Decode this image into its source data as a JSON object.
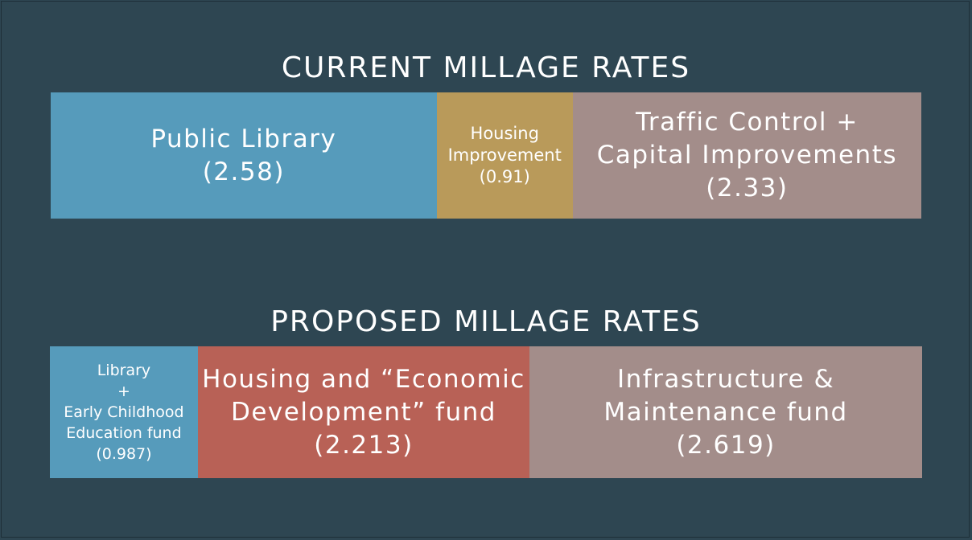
{
  "colors": {
    "background": "#2e4652",
    "library": "#569bbb",
    "housing_current": "#b99a5a",
    "traffic": "#a38d8a",
    "library_proposed": "#569bbb",
    "housing_proposed": "#b86156",
    "infrastructure": "#a38d8a",
    "text": "#ffffff"
  },
  "chart_data": [
    {
      "type": "bar",
      "orientation": "horizontal-stacked",
      "title": "CURRENT MILLAGE RATES",
      "categories": [
        "Public Library",
        "Housing Improvement",
        "Traffic Control + Capital Improvements"
      ],
      "values": [
        2.58,
        0.91,
        2.33
      ],
      "segments": [
        {
          "label_lines": [
            "Public Library"
          ],
          "value_label": "(2.58)",
          "value": 2.58,
          "color": "#569bbb",
          "text_size": "lg"
        },
        {
          "label_lines": [
            "Housing",
            "Improvement"
          ],
          "value_label": "(0.91)",
          "value": 0.91,
          "color": "#b99a5a",
          "text_size": "sm"
        },
        {
          "label_lines": [
            "Traffic Control +",
            "Capital Improvements"
          ],
          "value_label": "(2.33)",
          "value": 2.33,
          "color": "#a38d8a",
          "text_size": "lg"
        }
      ]
    },
    {
      "type": "bar",
      "orientation": "horizontal-stacked",
      "title": "PROPOSED MILLAGE RATES",
      "categories": [
        "Library + Early Childhood Education fund",
        "Housing and “Economic Development” fund",
        "Infrastructure & Maintenance fund"
      ],
      "values": [
        0.987,
        2.213,
        2.619
      ],
      "segments": [
        {
          "label_lines": [
            "Library",
            "+",
            "Early Childhood",
            "Education fund"
          ],
          "value_label": "(0.987)",
          "value": 0.987,
          "color": "#569bbb",
          "text_size": "xs"
        },
        {
          "label_lines": [
            "Housing and “Economic",
            "Development” fund"
          ],
          "value_label": "(2.213)",
          "value": 2.213,
          "color": "#b86156",
          "text_size": "lg"
        },
        {
          "label_lines": [
            "Infrastructure &",
            "Maintenance fund"
          ],
          "value_label": "(2.619)",
          "value": 2.619,
          "color": "#a38d8a",
          "text_size": "lg"
        }
      ]
    }
  ]
}
